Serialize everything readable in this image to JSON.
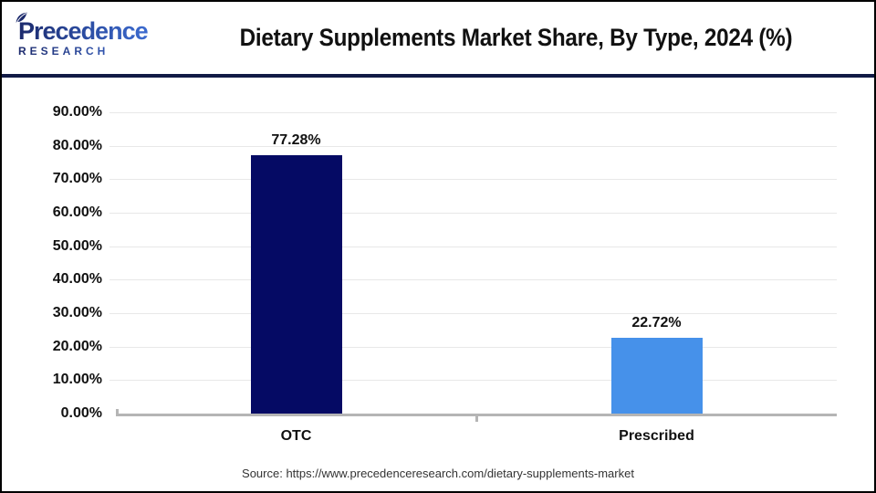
{
  "header": {
    "logo": {
      "line1": "Precedence",
      "line2": "RESEARCH",
      "color_dark": "#1C2A6C",
      "color_light": "#3E6FD6"
    },
    "title": "Dietary Supplements Market Share, By Type, 2024 (%)",
    "divider_color": "#121A45"
  },
  "chart_data": {
    "type": "bar",
    "title": "Dietary Supplements Market Share, By Type, 2024 (%)",
    "categories": [
      "OTC",
      "Prescribed"
    ],
    "values": [
      77.28,
      22.72
    ],
    "value_labels": [
      "77.28%",
      "22.72%"
    ],
    "bar_colors": [
      "#050A64",
      "#4691EA"
    ],
    "xlabel": "",
    "ylabel": "",
    "ylim": [
      0,
      90
    ],
    "yticks": [
      {
        "value": 90,
        "label": "90.00%"
      },
      {
        "value": 80,
        "label": "80.00%"
      },
      {
        "value": 70,
        "label": "70.00%"
      },
      {
        "value": 60,
        "label": "60.00%"
      },
      {
        "value": 50,
        "label": "50.00%"
      },
      {
        "value": 40,
        "label": "40.00%"
      },
      {
        "value": 30,
        "label": "30.00%"
      },
      {
        "value": 20,
        "label": "20.00%"
      },
      {
        "value": 10,
        "label": "10.00%"
      },
      {
        "value": 0,
        "label": "0.00%"
      }
    ],
    "grid": true,
    "gridline_color": "#E8E8E8",
    "axis_color": "#B5B5B5",
    "legend_position": "none"
  },
  "footer": {
    "source": "Source: https://www.precedenceresearch.com/dietary-supplements-market"
  }
}
